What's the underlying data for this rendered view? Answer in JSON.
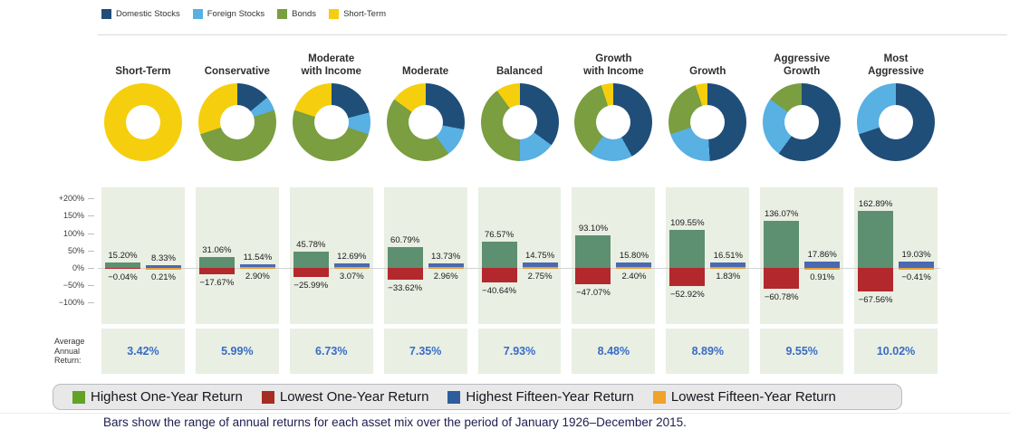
{
  "caption": "Bars show the range of annual returns for each asset mix over the period of January 1926–December 2015.",
  "chart_data": {
    "type": "bar",
    "categories": [
      "Short-Term",
      "Conservative",
      "Moderate with Income",
      "Moderate",
      "Balanced",
      "Growth with Income",
      "Growth",
      "Aggressive Growth",
      "Most Aggressive"
    ],
    "category_lines": [
      [
        "Short-Term"
      ],
      [
        "Conservative"
      ],
      [
        "Moderate",
        "with Income"
      ],
      [
        "Moderate"
      ],
      [
        "Balanced"
      ],
      [
        "Growth",
        "with Income"
      ],
      [
        "Growth"
      ],
      [
        "Aggressive",
        "Growth"
      ],
      [
        "Most",
        "Aggressive"
      ]
    ],
    "series": [
      {
        "name": "Highest One-Year Return",
        "color": "#5d8f71",
        "legend_color": "#64a226",
        "values": [
          15.2,
          31.06,
          45.78,
          60.79,
          76.57,
          93.1,
          109.55,
          136.07,
          162.89
        ]
      },
      {
        "name": "Lowest One-Year Return",
        "color": "#b3282d",
        "legend_color": "#a52d21",
        "values": [
          -0.04,
          -17.67,
          -25.99,
          -33.62,
          -40.64,
          -47.07,
          -52.92,
          -60.78,
          -67.56
        ]
      },
      {
        "name": "Highest Fifteen-Year Return",
        "color": "#4a69b1",
        "legend_color": "#2d5e9b",
        "values": [
          8.33,
          11.54,
          12.69,
          13.73,
          14.75,
          15.8,
          16.51,
          17.86,
          19.03
        ]
      },
      {
        "name": "Lowest Fifteen-Year Return",
        "color": "#e8a33b",
        "legend_color": "#f0a22b",
        "values": [
          0.21,
          2.9,
          3.07,
          2.96,
          2.75,
          2.4,
          1.83,
          0.91,
          -0.41
        ]
      }
    ],
    "value_labels": {
      "high1": [
        "15.20%",
        "31.06%",
        "45.78%",
        "60.79%",
        "76.57%",
        "93.10%",
        "109.55%",
        "136.07%",
        "162.89%"
      ],
      "low1": [
        "−0.04%",
        "−17.67%",
        "−25.99%",
        "−33.62%",
        "−40.64%",
        "−47.07%",
        "−52.92%",
        "−60.78%",
        "−67.56%"
      ],
      "high15": [
        "8.33%",
        "11.54%",
        "12.69%",
        "13.73%",
        "14.75%",
        "15.80%",
        "16.51%",
        "17.86%",
        "19.03%"
      ],
      "low15": [
        "0.21%",
        "2.90%",
        "3.07%",
        "2.96%",
        "2.75%",
        "2.40%",
        "1.83%",
        "0.91%",
        "−0.41%"
      ]
    },
    "average_annual_return": {
      "label_lines": [
        "Average",
        "Annual",
        "Return:"
      ],
      "values": [
        "3.42%",
        "5.99%",
        "6.73%",
        "7.35%",
        "7.93%",
        "8.48%",
        "8.89%",
        "9.55%",
        "10.02%"
      ]
    },
    "donut_mix": {
      "legend": [
        "Domestic Stocks",
        "Foreign Stocks",
        "Bonds",
        "Short-Term"
      ],
      "colors": [
        "#1f4e79",
        "#58b0e3",
        "#7a9e40",
        "#f5ce0e"
      ],
      "percent": [
        [
          0,
          0,
          0,
          100
        ],
        [
          14,
          6,
          50,
          30
        ],
        [
          21,
          9,
          50,
          20
        ],
        [
          28,
          12,
          45,
          15
        ],
        [
          35,
          15,
          40,
          10
        ],
        [
          42,
          18,
          35,
          5
        ],
        [
          49,
          21,
          25,
          5
        ],
        [
          60,
          25,
          15,
          0
        ],
        [
          70,
          30,
          0,
          0
        ]
      ]
    },
    "y_ticks": [
      {
        "label": "+200%",
        "value": 200
      },
      {
        "label": "150%",
        "value": 150
      },
      {
        "label": "100%",
        "value": 100
      },
      {
        "label": "50%",
        "value": 50
      },
      {
        "label": "0%",
        "value": 0
      },
      {
        "label": "−50%",
        "value": -50
      },
      {
        "label": "−100%",
        "value": -100
      }
    ],
    "ylim": [
      -160,
      230
    ],
    "grid": false,
    "legend_position": "bottom",
    "panel_background": "#e9efe3",
    "average_value_color": "#3a6cc4"
  }
}
